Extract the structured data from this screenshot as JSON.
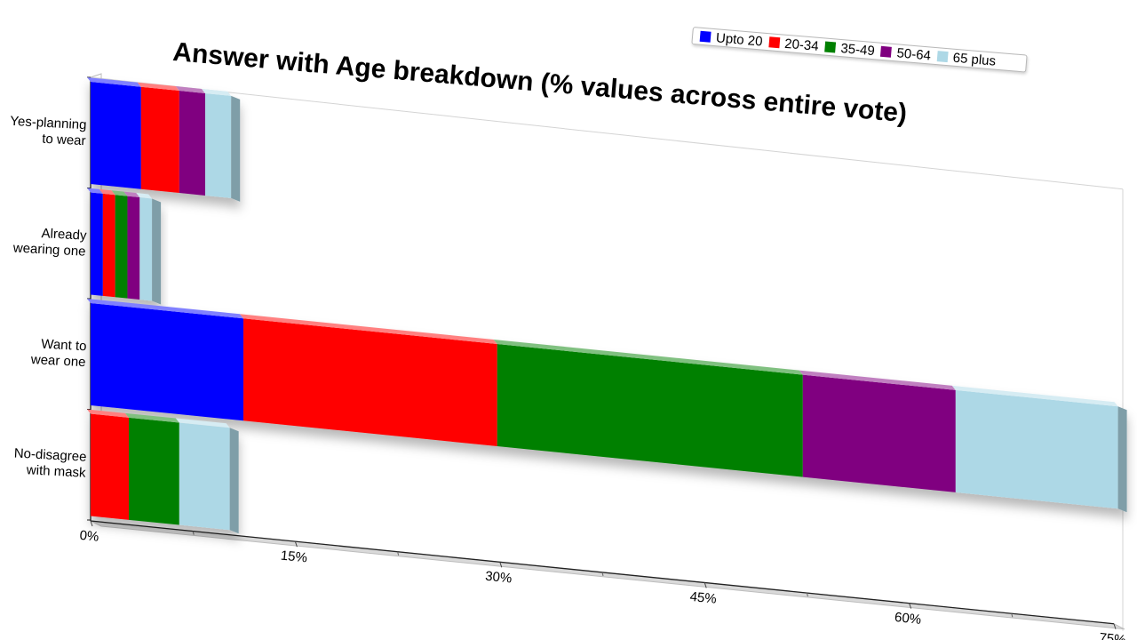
{
  "chart_data": {
    "type": "bar",
    "orientation": "horizontal",
    "stacked": true,
    "title": "Answer with Age breakdown (% values across entire vote)",
    "xlabel": "",
    "ylabel": "",
    "xlim": [
      0,
      75
    ],
    "x_ticks": [
      "0%",
      "15%",
      "30%",
      "45%",
      "60%",
      "75%"
    ],
    "x_tick_values": [
      0,
      15,
      30,
      45,
      60,
      75
    ],
    "legend_position": "top-right",
    "grid": false,
    "categories": [
      [
        "Yes-planning",
        "to wear"
      ],
      [
        "Already",
        "wearing one"
      ],
      [
        "Want to",
        "wear one"
      ],
      [
        "No-disagree",
        "with mask"
      ]
    ],
    "series": [
      {
        "name": "Upto 20",
        "color": "#0000ff",
        "values": [
          3.7,
          0.9,
          11.2,
          0
        ]
      },
      {
        "name": "20-34",
        "color": "#ff0000",
        "values": [
          2.8,
          0.9,
          18.6,
          2.8
        ]
      },
      {
        "name": "35-49",
        "color": "#008000",
        "values": [
          0,
          0.9,
          22.4,
          3.7
        ]
      },
      {
        "name": "50-64",
        "color": "#800080",
        "values": [
          1.9,
          0.9,
          11.2,
          0
        ]
      },
      {
        "name": "65 plus",
        "color": "#add8e6",
        "values": [
          1.9,
          0.9,
          11.9,
          3.7
        ]
      }
    ]
  }
}
